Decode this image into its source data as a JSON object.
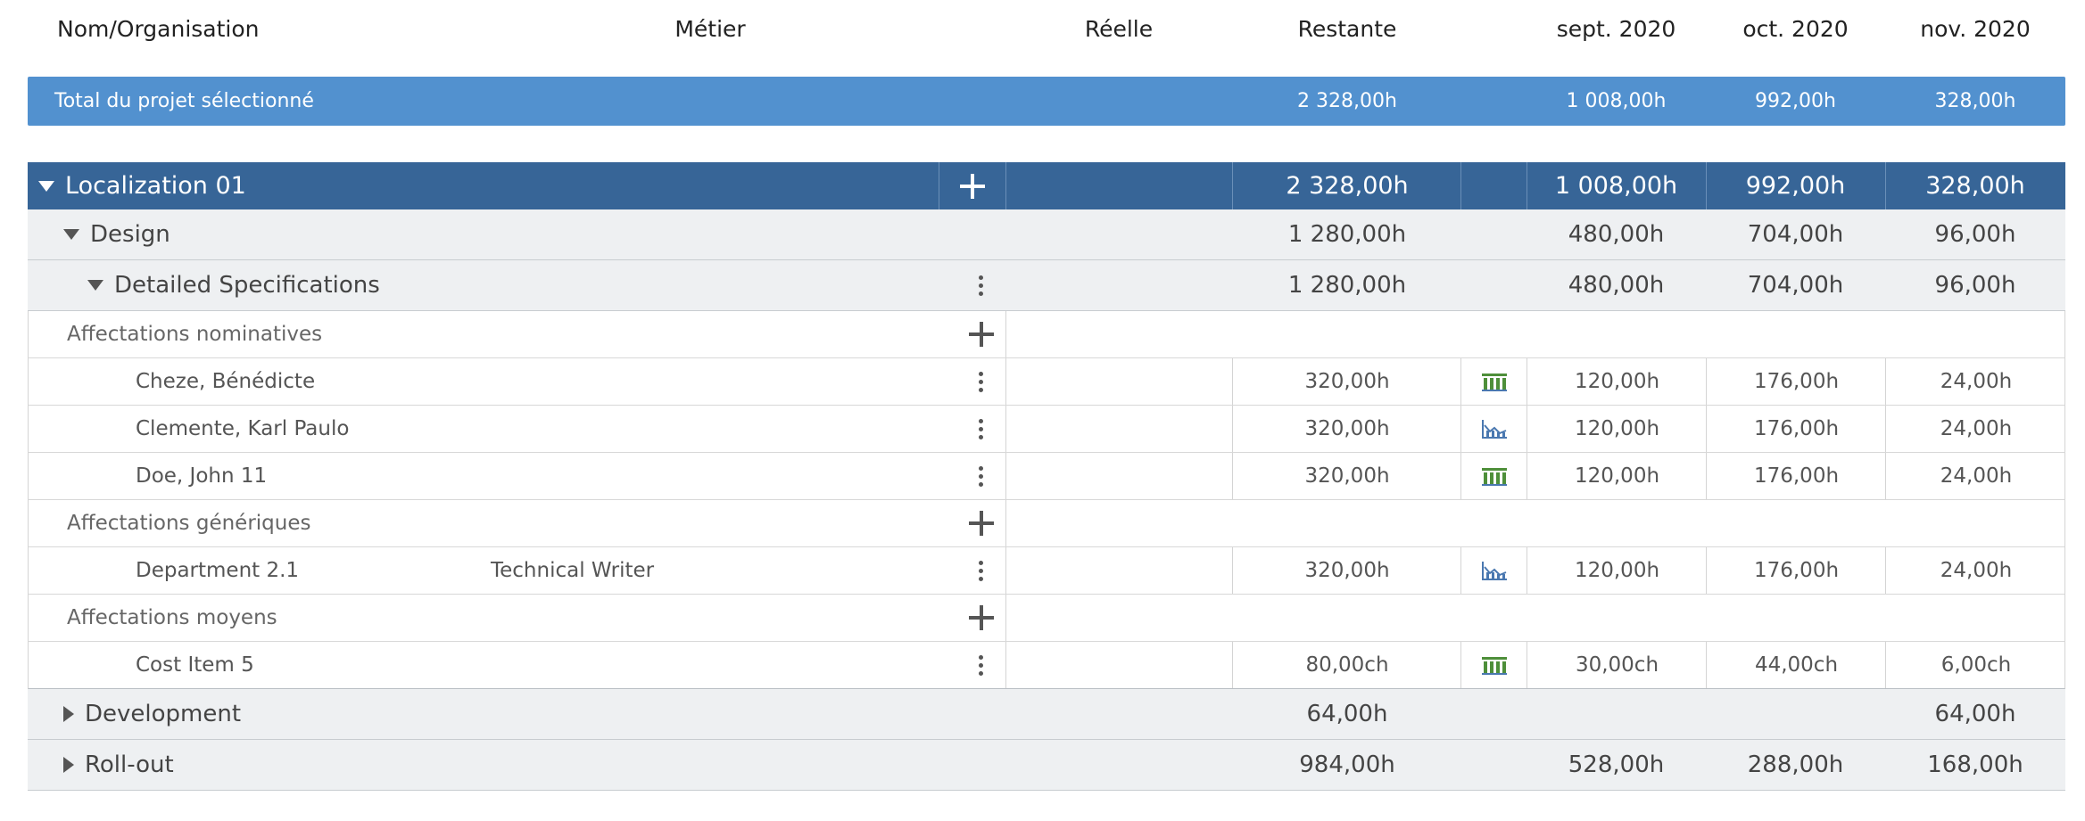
{
  "header": {
    "name_org": "Nom/Organisation",
    "metier": "Métier",
    "reelle": "Réelle",
    "restante": "Restante",
    "months": [
      "sept. 2020",
      "oct. 2020",
      "nov. 2020"
    ]
  },
  "total": {
    "label": "Total du projet sélectionné",
    "restante": "2 328,00h",
    "months": [
      "1 008,00h",
      "992,00h",
      "328,00h"
    ]
  },
  "localization": {
    "label": "Localization 01",
    "restante": "2 328,00h",
    "months": [
      "1 008,00h",
      "992,00h",
      "328,00h"
    ]
  },
  "design": {
    "label": "Design",
    "restante": "1 280,00h",
    "months": [
      "480,00h",
      "704,00h",
      "96,00h"
    ]
  },
  "detailed": {
    "label": "Detailed Specifications",
    "restante": "1 280,00h",
    "months": [
      "480,00h",
      "704,00h",
      "96,00h"
    ]
  },
  "sections": {
    "nominatives": "Affectations nominatives",
    "generiques": "Affectations génériques",
    "moyens": "Affectations moyens"
  },
  "assignments": [
    {
      "name": "Cheze, Bénédicte",
      "metier": "",
      "restante": "320,00h",
      "icon": "bar-chart-icon",
      "months": [
        "120,00h",
        "176,00h",
        "24,00h"
      ]
    },
    {
      "name": "Clemente, Karl Paulo",
      "metier": "",
      "restante": "320,00h",
      "icon": "area-chart-icon",
      "months": [
        "120,00h",
        "176,00h",
        "24,00h"
      ]
    },
    {
      "name": "Doe, John 11",
      "metier": "",
      "restante": "320,00h",
      "icon": "bar-chart-icon",
      "months": [
        "120,00h",
        "176,00h",
        "24,00h"
      ]
    },
    {
      "name": "Department 2.1",
      "metier": "Technical Writer",
      "restante": "320,00h",
      "icon": "area-chart-icon",
      "months": [
        "120,00h",
        "176,00h",
        "24,00h"
      ]
    },
    {
      "name": "Cost Item 5",
      "metier": "",
      "restante": "80,00ch",
      "icon": "bar-chart-icon",
      "months": [
        "30,00ch",
        "44,00ch",
        "6,00ch"
      ]
    }
  ],
  "development": {
    "label": "Development",
    "restante": "64,00h",
    "months": [
      "",
      "",
      "64,00h"
    ]
  },
  "rollout": {
    "label": "Roll-out",
    "restante": "984,00h",
    "months": [
      "528,00h",
      "288,00h",
      "168,00h"
    ]
  },
  "colors": {
    "total_bar": "#5291cf",
    "group_bar": "#376597",
    "task_bg": "#eef0f2",
    "bar_icon": "#4e8f3a",
    "area_icon": "#4a78b0"
  }
}
